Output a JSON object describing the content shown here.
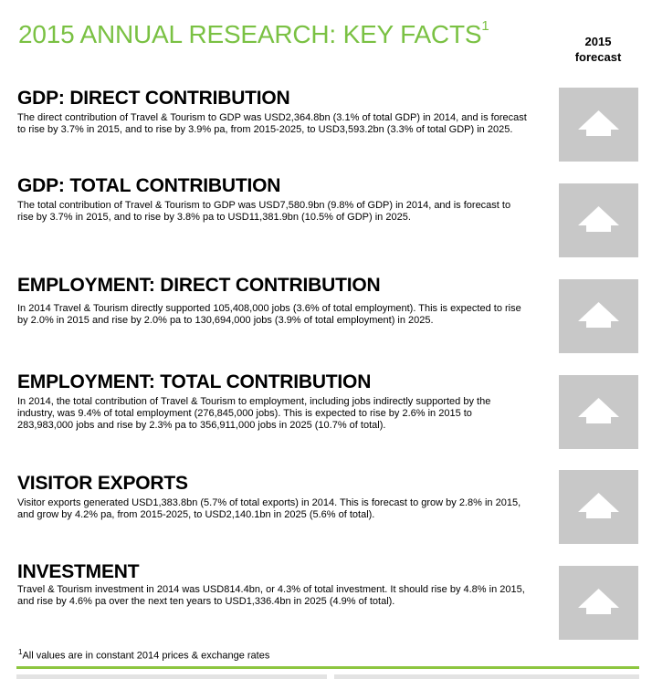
{
  "header": {
    "title": "2015 ANNUAL RESEARCH: KEY FACTS",
    "title_sup": "1",
    "forecast_label_line1": "2015",
    "forecast_label_line2": "forecast"
  },
  "sections": [
    {
      "heading": "GDP: DIRECT CONTRIBUTION",
      "text": "The direct contribution of Travel & Tourism to GDP was USD2,364.8bn (3.1% of total GDP) in 2014, and is forecast to rise by 3.7% in 2015, and to rise by 3.9% pa, from 2015-2025, to USD3,593.2bn (3.3% of total GDP) in 2025.",
      "forecast_icon": "up-arrow-icon"
    },
    {
      "heading": "GDP: TOTAL CONTRIBUTION",
      "text": "The total contribution of Travel & Tourism to GDP was USD7,580.9bn (9.8% of GDP) in 2014, and is forecast to rise by 3.7% in 2015, and to rise by 3.8% pa to USD11,381.9bn (10.5% of GDP) in 2025.",
      "forecast_icon": "up-arrow-icon"
    },
    {
      "heading": "EMPLOYMENT: DIRECT CONTRIBUTION",
      "text": "In 2014 Travel & Tourism directly supported 105,408,000 jobs  (3.6% of total employment).  This is expected to rise by 2.0% in 2015 and rise by 2.0% pa to 130,694,000 jobs (3.9% of total employment) in 2025.",
      "forecast_icon": "up-arrow-icon"
    },
    {
      "heading": "EMPLOYMENT: TOTAL CONTRIBUTION",
      "text": "In 2014, the total contribution of Travel & Tourism to employment, including jobs indirectly supported by the industry, was 9.4% of total employment (276,845,000 jobs). This is expected to rise by 2.6% in 2015 to 283,983,000 jobs and rise by 2.3% pa to 356,911,000 jobs in 2025 (10.7% of total).",
      "forecast_icon": "up-arrow-icon"
    },
    {
      "heading": "VISITOR EXPORTS",
      "text": "Visitor exports generated USD1,383.8bn (5.7% of total exports) in 2014.  This is forecast to grow by 2.8% in 2015, and grow by 4.2% pa, from 2015-2025, to USD2,140.1bn in 2025 (5.6% of total).",
      "forecast_icon": "up-arrow-icon"
    },
    {
      "heading": "INVESTMENT",
      "text": "Travel & Tourism investment in 2014 was USD814.4bn, or 4.3% of total investment.  It should rise by 4.8% in 2015, and rise by 4.6% pa over the next ten years to USD1,336.4bn in 2025 (4.9% of total).",
      "forecast_icon": "up-arrow-icon"
    }
  ],
  "footnote": {
    "sup": "1",
    "text": "All values are in constant 2014 prices & exchange rates"
  },
  "colors": {
    "title_green": "#7ac143",
    "rule_green": "#8dc63f",
    "box_grey": "#c8c8c8"
  }
}
